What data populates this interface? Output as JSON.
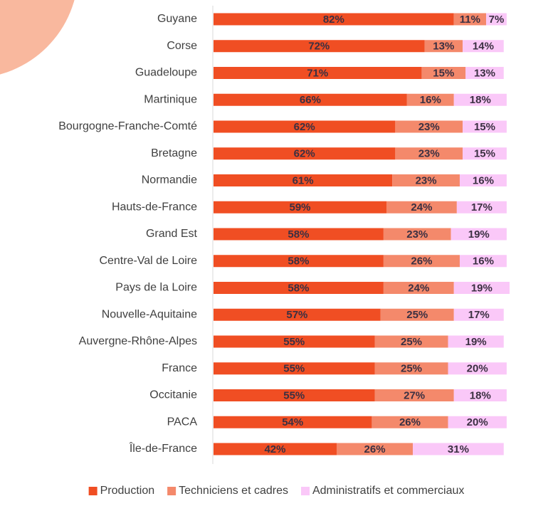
{
  "chart_data": {
    "type": "stacked-bar-horizontal",
    "categories": [
      "Guyane",
      "Corse",
      "Guadeloupe",
      "Martinique",
      "Bourgogne-Franche-Comté",
      "Bretagne",
      "Normandie",
      "Hauts-de-France",
      "Grand Est",
      "Centre-Val de Loire",
      "Pays de la Loire",
      "Nouvelle-Aquitaine",
      "Auvergne-Rhône-Alpes",
      "France",
      "Occitanie",
      "PACA",
      "Île-de-France"
    ],
    "series": [
      {
        "name": "Production",
        "color": "#f04e23",
        "values": [
          82,
          72,
          71,
          66,
          62,
          62,
          61,
          59,
          58,
          58,
          58,
          57,
          55,
          55,
          55,
          54,
          42
        ],
        "value_labels": [
          "82%",
          "72%",
          "71%",
          "66%",
          "62%",
          "62%",
          "61%",
          "59%",
          "58%",
          "58%",
          "58%",
          "57%",
          "55%",
          "55%",
          "55%",
          "54%",
          "42%"
        ]
      },
      {
        "name": "Techniciens et cadres",
        "color": "#f4896b",
        "values": [
          11,
          13,
          15,
          16,
          23,
          23,
          23,
          24,
          23,
          26,
          24,
          25,
          25,
          25,
          27,
          26,
          26
        ],
        "value_labels": [
          "11%",
          "13%",
          "15%",
          "16%",
          "23%",
          "23%",
          "23%",
          "24%",
          "23%",
          "26%",
          "24%",
          "25%",
          "25%",
          "25%",
          "27%",
          "26%",
          "26%"
        ]
      },
      {
        "name": "Administratifs et commerciaux",
        "color": "#fac8f8",
        "values": [
          7,
          14,
          13,
          18,
          15,
          15,
          16,
          17,
          19,
          16,
          19,
          17,
          19,
          20,
          18,
          20,
          31
        ],
        "value_labels": [
          "7%",
          "14%",
          "13%",
          "18%",
          "15%",
          "15%",
          "16%",
          "17%",
          "19%",
          "16%",
          "19%",
          "17%",
          "19%",
          "20%",
          "18%",
          "20%",
          "31%"
        ]
      }
    ],
    "legend": "bottom"
  }
}
